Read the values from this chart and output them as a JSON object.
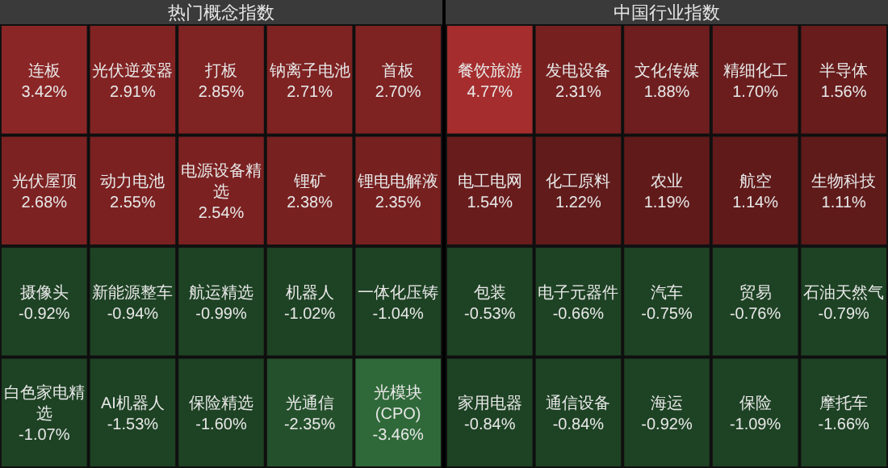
{
  "chart_data": [
    {
      "type": "other",
      "title": "热门概念指数",
      "categories": [
        "连板",
        "光伏逆变器",
        "打板",
        "钠离子电池",
        "首板",
        "光伏屋顶",
        "动力电池",
        "电源设备精选",
        "锂矿",
        "锂电电解液",
        "摄像头",
        "新能源整车",
        "航运精选",
        "机器人",
        "一体化压铸",
        "白色家电精选",
        "AI机器人",
        "保险精选",
        "光通信",
        "光模块(CPO)"
      ],
      "values": [
        3.42,
        2.91,
        2.85,
        2.71,
        2.7,
        2.68,
        2.55,
        2.54,
        2.38,
        2.35,
        -0.92,
        -0.94,
        -0.99,
        -1.02,
        -1.04,
        -1.07,
        -1.53,
        -1.6,
        -2.35,
        -3.46
      ],
      "value_labels": [
        "3.42%",
        "2.91%",
        "2.85%",
        "2.71%",
        "2.70%",
        "2.68%",
        "2.55%",
        "2.54%",
        "2.38%",
        "2.35%",
        "-0.92%",
        "-0.94%",
        "-0.99%",
        "-1.02%",
        "-1.04%",
        "-1.07%",
        "-1.53%",
        "-1.60%",
        "-2.35%",
        "-3.46%"
      ]
    },
    {
      "type": "other",
      "title": "中国行业指数",
      "categories": [
        "餐饮旅游",
        "发电设备",
        "文化传媒",
        "精细化工",
        "半导体",
        "电工电网",
        "化工原料",
        "农业",
        "航空",
        "生物科技",
        "包装",
        "电子元器件",
        "汽车",
        "贸易",
        "石油天然气",
        "家用电器",
        "通信设备",
        "海运",
        "保险",
        "摩托车"
      ],
      "values": [
        4.77,
        2.31,
        1.88,
        1.7,
        1.56,
        1.54,
        1.22,
        1.19,
        1.14,
        1.11,
        -0.53,
        -0.66,
        -0.75,
        -0.76,
        -0.79,
        -0.84,
        -0.84,
        -0.92,
        -1.09,
        -1.66
      ],
      "value_labels": [
        "4.77%",
        "2.31%",
        "1.88%",
        "1.70%",
        "1.56%",
        "1.54%",
        "1.22%",
        "1.19%",
        "1.14%",
        "1.11%",
        "-0.53%",
        "-0.66%",
        "-0.75%",
        "-0.76%",
        "-0.79%",
        "-0.84%",
        "-0.84%",
        "-0.92%",
        "-1.09%",
        "-1.66%"
      ]
    }
  ]
}
